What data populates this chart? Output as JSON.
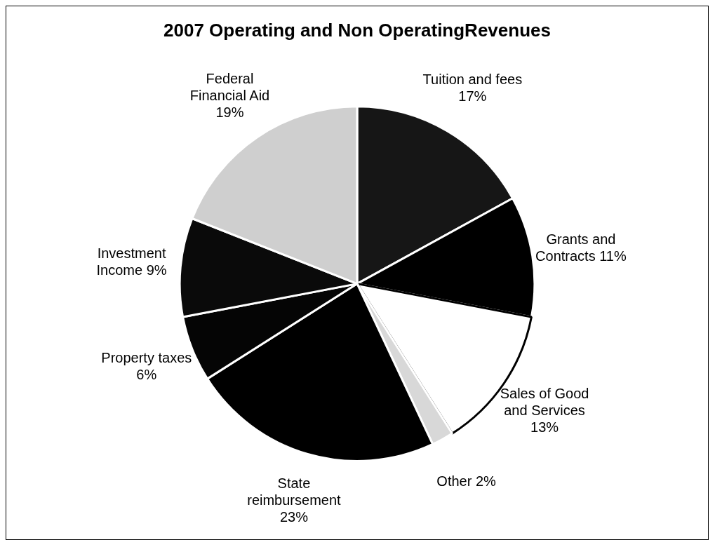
{
  "chart_data": {
    "type": "pie",
    "title": "2007 Operating and Non OperatingRevenues",
    "categories": [
      "Tuition and fees",
      "Grants and Contracts",
      "Sales of Good and Services",
      "Other",
      "State reimbursement",
      "Property taxes",
      "Investment Income",
      "Federal Financial Aid"
    ],
    "values": [
      17,
      11,
      13,
      2,
      23,
      6,
      9,
      19
    ],
    "value_labels": [
      "17%",
      "11%",
      "13%",
      "2%",
      "23%",
      "6%",
      "9%",
      "19%"
    ],
    "colors": [
      "#161616",
      "#000000",
      "#ffffff",
      "#d8d8d8",
      "#000000",
      "#050505",
      "#0a0a0a",
      "#cfcfcf"
    ],
    "legend": false
  }
}
